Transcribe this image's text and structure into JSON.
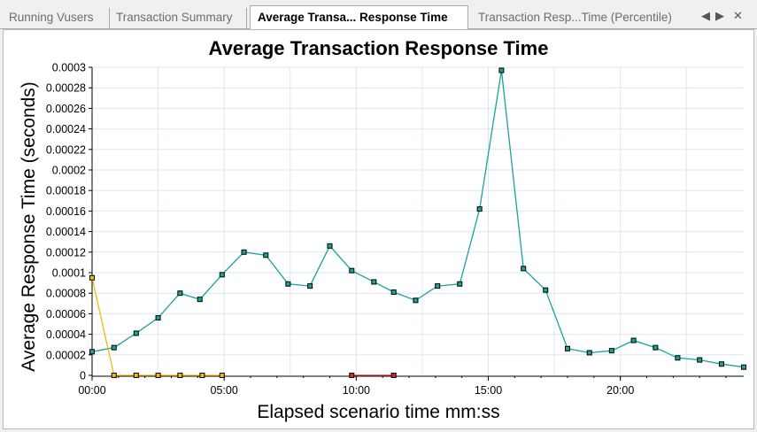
{
  "tabs": [
    {
      "label": "Running Vusers",
      "active": false
    },
    {
      "label": "Transaction Summary",
      "active": false
    },
    {
      "label": "Average Transa... Response Time",
      "active": true
    },
    {
      "label": "Transaction Resp...Time (Percentile)",
      "active": false
    }
  ],
  "tab_controls": {
    "prev": "◀",
    "next": "▶",
    "close": "✕"
  },
  "chart_data": {
    "type": "line",
    "title": "Average Transaction Response Time",
    "xlabel": "Elapsed scenario time mm:ss",
    "ylabel": "Average Response Time (seconds)",
    "x_unit": "minutes",
    "xlim": [
      0,
      24.67
    ],
    "ylim": [
      0,
      0.0003
    ],
    "x_tick_labels": [
      "00:00",
      "05:00",
      "10:00",
      "15:00",
      "20:00"
    ],
    "y_tick_labels": [
      "0",
      "0.00002",
      "0.00004",
      "0.00006",
      "0.00008",
      "0.0001",
      "0.00012",
      "0.00014",
      "0.00016",
      "0.00018",
      "0.0002",
      "0.00022",
      "0.00024",
      "0.00026",
      "0.00028",
      "0.0003"
    ],
    "grid": true,
    "series": [
      {
        "color": "#1aa39a",
        "x": [
          0,
          0.83,
          1.67,
          2.5,
          3.33,
          4.08,
          4.92,
          5.75,
          6.58,
          7.42,
          8.25,
          9.0,
          9.83,
          10.67,
          11.42,
          12.25,
          13.08,
          13.92,
          14.67,
          15.5,
          16.33,
          17.17,
          18.0,
          18.83,
          19.67,
          20.5,
          21.33,
          22.17,
          23.0,
          23.83,
          24.67
        ],
        "y": [
          2.3e-05,
          2.7e-05,
          4.1e-05,
          5.6e-05,
          8e-05,
          7.4e-05,
          9.8e-05,
          0.00012,
          0.000117,
          8.9e-05,
          8.7e-05,
          0.000126,
          0.000102,
          9.1e-05,
          8.1e-05,
          7.3e-05,
          8.7e-05,
          8.9e-05,
          0.000162,
          0.000297,
          0.000104,
          8.3e-05,
          2.6e-05,
          2.2e-05,
          2.4e-05,
          3.4e-05,
          2.7e-05,
          1.7e-05,
          1.5e-05,
          1.1e-05,
          8e-06
        ]
      },
      {
        "color": "#f2b90f",
        "x": [
          0,
          0.83,
          1.67,
          2.5,
          3.33,
          4.17,
          4.92
        ],
        "y": [
          9.5e-05,
          0,
          0,
          0,
          0,
          0,
          0
        ]
      },
      {
        "color": "#e0202a",
        "x": [
          9.83,
          11.42
        ],
        "y": [
          0,
          0
        ]
      }
    ]
  }
}
